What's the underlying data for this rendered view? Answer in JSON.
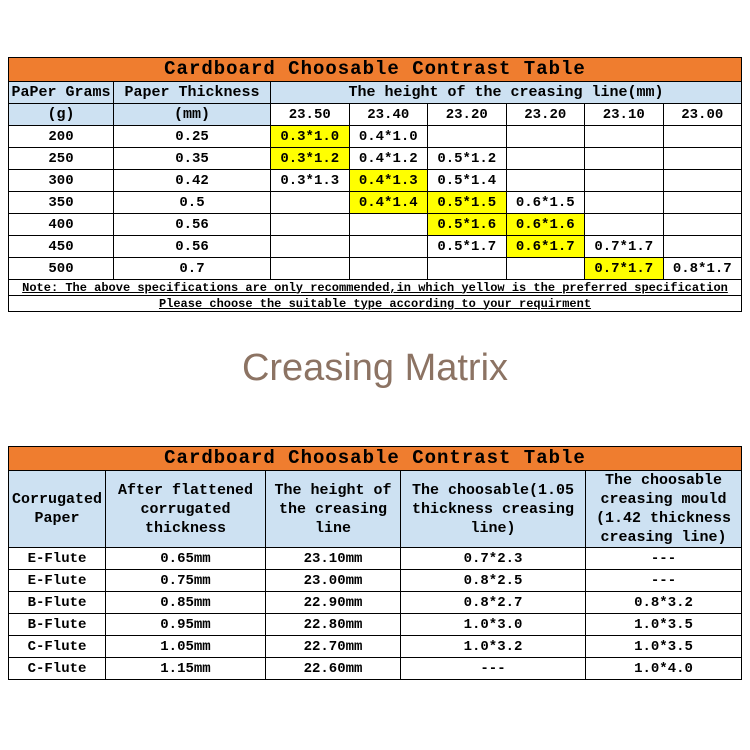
{
  "colors": {
    "header_orange": "#ef7d2f",
    "header_blue": "#cde1f2",
    "highlight_yellow": "#ffff00",
    "title_brown": "#8c7363"
  },
  "middle_title": "Creasing Matrix",
  "table1": {
    "title": "Cardboard Choosable Contrast Table",
    "col1_header": "PaPer Grams",
    "col1_unit": "(g)",
    "col2_header": "Paper Thickness",
    "col2_unit": "(mm)",
    "span_header": "The height of the creasing line(mm)",
    "height_columns": [
      "23.50",
      "23.40",
      "23.20",
      "23.20",
      "23.10",
      "23.00"
    ],
    "rows": [
      {
        "grams": "200",
        "thickness": "0.25",
        "cells": [
          {
            "text": "0.3*1.0",
            "highlight": true
          },
          {
            "text": "0.4*1.0",
            "highlight": false
          },
          {
            "text": "",
            "highlight": false
          },
          {
            "text": "",
            "highlight": false
          },
          {
            "text": "",
            "highlight": false
          },
          {
            "text": "",
            "highlight": false
          }
        ]
      },
      {
        "grams": "250",
        "thickness": "0.35",
        "cells": [
          {
            "text": "0.3*1.2",
            "highlight": true
          },
          {
            "text": "0.4*1.2",
            "highlight": false
          },
          {
            "text": "0.5*1.2",
            "highlight": false
          },
          {
            "text": "",
            "highlight": false
          },
          {
            "text": "",
            "highlight": false
          },
          {
            "text": "",
            "highlight": false
          }
        ]
      },
      {
        "grams": "300",
        "thickness": "0.42",
        "cells": [
          {
            "text": "0.3*1.3",
            "highlight": false
          },
          {
            "text": "0.4*1.3",
            "highlight": true
          },
          {
            "text": "0.5*1.4",
            "highlight": false
          },
          {
            "text": "",
            "highlight": false
          },
          {
            "text": "",
            "highlight": false
          },
          {
            "text": "",
            "highlight": false
          }
        ]
      },
      {
        "grams": "350",
        "thickness": "0.5",
        "cells": [
          {
            "text": "",
            "highlight": false
          },
          {
            "text": "0.4*1.4",
            "highlight": true
          },
          {
            "text": "0.5*1.5",
            "highlight": true
          },
          {
            "text": "0.6*1.5",
            "highlight": false
          },
          {
            "text": "",
            "highlight": false
          },
          {
            "text": "",
            "highlight": false
          }
        ]
      },
      {
        "grams": "400",
        "thickness": "0.56",
        "cells": [
          {
            "text": "",
            "highlight": false
          },
          {
            "text": "",
            "highlight": false
          },
          {
            "text": "0.5*1.6",
            "highlight": true
          },
          {
            "text": "0.6*1.6",
            "highlight": true
          },
          {
            "text": "",
            "highlight": false
          },
          {
            "text": "",
            "highlight": false
          }
        ]
      },
      {
        "grams": "450",
        "thickness": "0.56",
        "cells": [
          {
            "text": "",
            "highlight": false
          },
          {
            "text": "",
            "highlight": false
          },
          {
            "text": "0.5*1.7",
            "highlight": false
          },
          {
            "text": "0.6*1.7",
            "highlight": true
          },
          {
            "text": "0.7*1.7",
            "highlight": false
          },
          {
            "text": "",
            "highlight": false
          }
        ]
      },
      {
        "grams": "500",
        "thickness": "0.7",
        "cells": [
          {
            "text": "",
            "highlight": false
          },
          {
            "text": "",
            "highlight": false
          },
          {
            "text": "",
            "highlight": false
          },
          {
            "text": "",
            "highlight": false
          },
          {
            "text": "0.7*1.7",
            "highlight": true
          },
          {
            "text": "0.8*1.7",
            "highlight": false
          }
        ]
      }
    ],
    "note1": "Note: The above specifications are only recommended,in which yellow is the preferred specification",
    "note2": "Please choose the suitable type according to your requirment"
  },
  "table2": {
    "title": "Cardboard Choosable Contrast Table",
    "headers": [
      "Corrugated Paper",
      "After flattened corrugated thickness",
      "The height of the creasing line",
      "The choosable(1.05 thickness creasing line)",
      "The choosable creasing mould (1.42 thickness creasing line)"
    ],
    "rows": [
      [
        "E-Flute",
        "0.65mm",
        "23.10mm",
        "0.7*2.3",
        "---"
      ],
      [
        "E-Flute",
        "0.75mm",
        "23.00mm",
        "0.8*2.5",
        "---"
      ],
      [
        "B-Flute",
        "0.85mm",
        "22.90mm",
        "0.8*2.7",
        "0.8*3.2"
      ],
      [
        "B-Flute",
        "0.95mm",
        "22.80mm",
        "1.0*3.0",
        "1.0*3.5"
      ],
      [
        "C-Flute",
        "1.05mm",
        "22.70mm",
        "1.0*3.2",
        "1.0*3.5"
      ],
      [
        "C-Flute",
        "1.15mm",
        "22.60mm",
        "---",
        "1.0*4.0"
      ]
    ]
  }
}
